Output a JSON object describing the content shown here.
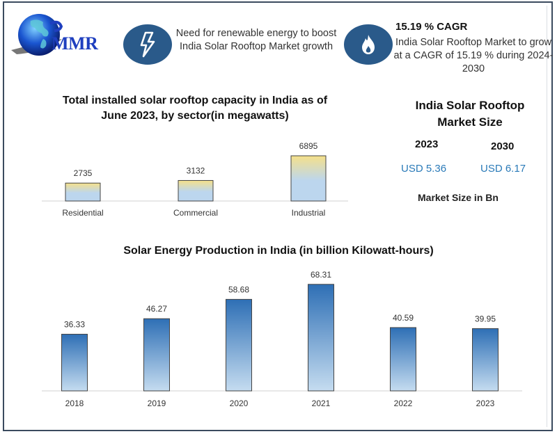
{
  "brand": {
    "logo_text": "MMR"
  },
  "header": {
    "driver_text": "Need for renewable energy to boost India Solar Rooftop Market growth",
    "driver_icon": "lightning-bolt-icon",
    "cagr_title": "15.19 % CAGR",
    "cagr_text": "India Solar Rooftop Market to grow at a CAGR of 15.19 % during 2024-2030",
    "cagr_icon": "flame-icon"
  },
  "market_size": {
    "title": "India Solar Rooftop Market Size",
    "year_1": "2023",
    "value_1": "USD 5.36",
    "year_2": "2030",
    "value_2": "USD 6.17",
    "note": "Market Size in Bn",
    "value_color": "#2a7ab8"
  },
  "chart_data": [
    {
      "type": "bar",
      "title": "Total installed solar rooftop capacity in India as of June 2023, by sector(in megawatts)",
      "categories": [
        "Residential",
        "Commercial",
        "Industrial"
      ],
      "values": [
        2735,
        3132,
        6895
      ],
      "data_labels": [
        "2735",
        "3132",
        "6895"
      ],
      "xlabel": "",
      "ylabel": "",
      "ylim": [
        0,
        7000
      ],
      "grid": false,
      "legend": "none",
      "colors": {
        "top": "#f5e08a",
        "bottom": "#bcd6ee"
      }
    },
    {
      "type": "bar",
      "title": "Solar Energy Production in India (in billion Kilowatt-hours)",
      "categories": [
        "2018",
        "2019",
        "2020",
        "2021",
        "2022",
        "2023"
      ],
      "values": [
        36.33,
        46.27,
        58.68,
        68.31,
        40.59,
        39.95
      ],
      "data_labels": [
        "36.33",
        "46.27",
        "58.68",
        "68.31",
        "40.59",
        "39.95"
      ],
      "xlabel": "",
      "ylabel": "",
      "ylim": [
        0,
        70
      ],
      "grid": false,
      "legend": "none",
      "colors": {
        "top": "#2e6fb5",
        "bottom": "#c5dcf0"
      }
    }
  ]
}
